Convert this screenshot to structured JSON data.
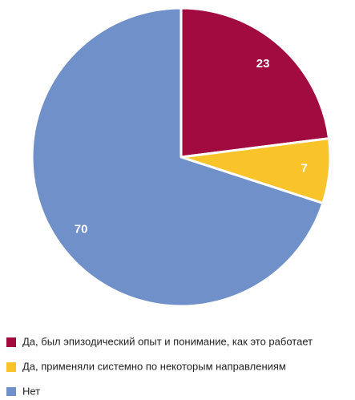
{
  "chart_data": {
    "type": "pie",
    "categories": [
      "Да, был эпизодический опыт и понимание, как это работает",
      "Да, применяли системно по некоторым направлениям",
      "Нет"
    ],
    "values": [
      23,
      7,
      70
    ],
    "colors": [
      "#a10b40",
      "#f8c42a",
      "#6f90c8"
    ],
    "legend": "bottom"
  }
}
